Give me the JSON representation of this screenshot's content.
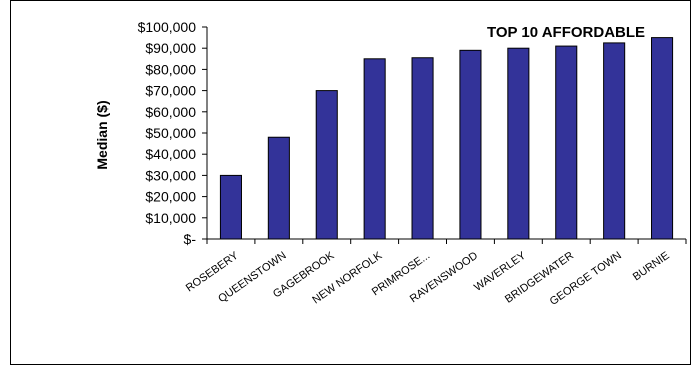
{
  "chart_data": {
    "type": "bar",
    "title": "TOP 10 AFFORDABLE",
    "ylabel": "Median ($)",
    "xlabel": "",
    "categories": [
      "ROSEBERY",
      "QUEENSTOWN",
      "GAGEBROOK",
      "NEW NORFOLK",
      "PRIMROSE...",
      "RAVENSWOOD",
      "WAVERLEY",
      "BRIDGEWATER",
      "GEORGE TOWN",
      "BURNIE"
    ],
    "values": [
      30000,
      48000,
      70000,
      85000,
      85500,
      89000,
      90000,
      91000,
      92500,
      95000
    ],
    "ylim": [
      0,
      100000
    ],
    "yticks": [
      0,
      10000,
      20000,
      30000,
      40000,
      50000,
      60000,
      70000,
      80000,
      90000,
      100000
    ],
    "ytick_labels": [
      "$-",
      "$10,000",
      "$20,000",
      "$30,000",
      "$40,000",
      "$50,000",
      "$60,000",
      "$70,000",
      "$80,000",
      "$90,000",
      "$100,000"
    ],
    "bar_color": "#333399",
    "grid": false,
    "legend": "none"
  }
}
